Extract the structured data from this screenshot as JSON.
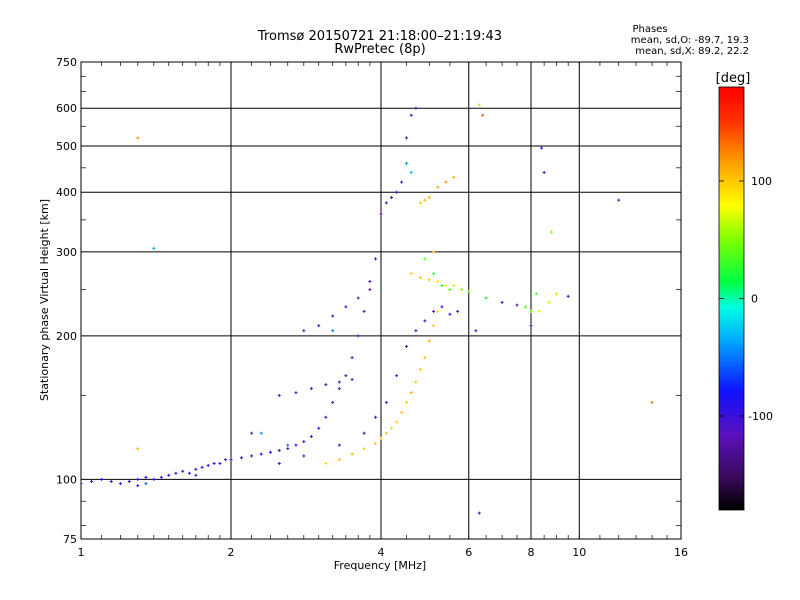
{
  "chart_data": {
    "type": "scatter",
    "title": "Tromsø 20150721 21:18:00–21:19:43",
    "subtitle": "RwPretec (8p)",
    "xlabel": "Frequency [MHz]",
    "ylabel": "Stationary phase Virtual Height [km]",
    "x_scale": "log2",
    "y_scale": "log",
    "xlim": [
      1,
      16
    ],
    "ylim": [
      75,
      750
    ],
    "x_ticks": [
      1,
      2,
      4,
      6,
      8,
      10,
      16
    ],
    "y_ticks": [
      75,
      100,
      200,
      300,
      400,
      500,
      600,
      750
    ],
    "grid": true,
    "phase_info": {
      "title": "Phases",
      "o_line": "mean, sd,O: -89.7, 19.3",
      "x_line": "mean, sd,X:  89.2, 22.2"
    },
    "colorbar": {
      "label": "[deg]",
      "min": -180,
      "max": 180,
      "ticks": [
        100,
        0,
        -100
      ]
    },
    "series": [
      {
        "description_color": "blue O-mode trace",
        "points": [
          [
            1.0,
            98,
            -90
          ],
          [
            1.05,
            99,
            -85
          ],
          [
            1.1,
            100,
            -80
          ],
          [
            1.15,
            99,
            -88
          ],
          [
            1.2,
            98,
            -95
          ],
          [
            1.25,
            99,
            -92
          ],
          [
            1.3,
            100,
            -90
          ],
          [
            1.35,
            101,
            -87
          ],
          [
            1.4,
            100,
            -93
          ],
          [
            1.45,
            101,
            -98
          ],
          [
            1.5,
            102,
            -90
          ],
          [
            1.55,
            103,
            -85
          ],
          [
            1.6,
            104,
            -95
          ],
          [
            1.65,
            103,
            -100
          ],
          [
            1.7,
            105,
            -92
          ],
          [
            1.75,
            106,
            -88
          ],
          [
            1.8,
            107,
            -95
          ],
          [
            1.85,
            108,
            -90
          ],
          [
            1.9,
            108,
            -100
          ],
          [
            1.95,
            110,
            -97
          ],
          [
            2.0,
            110,
            -92
          ],
          [
            2.1,
            111,
            -90
          ],
          [
            2.2,
            112,
            -95
          ],
          [
            2.3,
            113,
            -88
          ],
          [
            2.4,
            114,
            -93
          ],
          [
            2.5,
            115,
            -97
          ],
          [
            2.6,
            116,
            -90
          ],
          [
            2.7,
            118,
            -95
          ],
          [
            2.8,
            120,
            -92
          ],
          [
            2.9,
            123,
            -100
          ],
          [
            3.0,
            128,
            -102
          ],
          [
            3.1,
            135,
            -105
          ],
          [
            3.2,
            145,
            -110
          ],
          [
            3.3,
            155,
            -108
          ],
          [
            3.4,
            165,
            -112
          ],
          [
            3.5,
            180,
            -110
          ],
          [
            3.6,
            200,
            -115
          ],
          [
            3.7,
            225,
            -112
          ],
          [
            3.8,
            250,
            -118
          ],
          [
            3.9,
            290,
            -120
          ],
          [
            4.0,
            360,
            -115
          ],
          [
            4.1,
            380,
            -110
          ],
          [
            4.2,
            390,
            -112
          ],
          [
            4.3,
            400,
            -108
          ],
          [
            4.4,
            420,
            -105
          ],
          [
            4.5,
            520,
            -110
          ],
          [
            4.6,
            580,
            -108
          ],
          [
            4.7,
            600,
            -112
          ],
          [
            2.5,
            150,
            -110
          ],
          [
            2.7,
            152,
            -115
          ],
          [
            2.9,
            155,
            -112
          ],
          [
            3.1,
            158,
            -118
          ],
          [
            3.3,
            160,
            -110
          ],
          [
            3.5,
            162,
            -115
          ],
          [
            3.2,
            220,
            -105
          ],
          [
            3.4,
            230,
            -110
          ],
          [
            3.6,
            240,
            -112
          ],
          [
            3.8,
            260,
            -115
          ],
          [
            3.0,
            210,
            -108
          ],
          [
            2.8,
            205,
            -110
          ],
          [
            1.3,
            97,
            -85
          ],
          [
            1.7,
            102,
            -120
          ],
          [
            2.2,
            125,
            -118
          ],
          [
            2.5,
            108,
            -95
          ],
          [
            2.8,
            112,
            -100
          ],
          [
            3.3,
            118,
            -110
          ],
          [
            3.7,
            125,
            -105
          ],
          [
            3.9,
            135,
            -110
          ],
          [
            4.1,
            145,
            -108
          ],
          [
            4.3,
            165,
            -112
          ],
          [
            4.5,
            190,
            -110
          ],
          [
            4.7,
            205,
            -105
          ],
          [
            4.9,
            215,
            -108
          ],
          [
            5.1,
            225,
            -110
          ],
          [
            5.3,
            230,
            -106
          ],
          [
            5.5,
            222,
            -104
          ],
          [
            5.7,
            225,
            -112
          ],
          [
            6.2,
            205,
            -100
          ],
          [
            6.5,
            240,
            -108
          ],
          [
            7.0,
            235,
            -110
          ],
          [
            7.5,
            232,
            -104
          ],
          [
            8.0,
            210,
            -100
          ],
          [
            9.5,
            242,
            -108
          ],
          [
            12.0,
            385,
            -110
          ],
          [
            8.4,
            495,
            -112
          ],
          [
            8.5,
            440,
            -108
          ],
          [
            6.3,
            85,
            -105
          ]
        ]
      },
      {
        "description_color": "yellow-orange X-mode trace",
        "points": [
          [
            3.1,
            108,
            95
          ],
          [
            3.3,
            110,
            100
          ],
          [
            3.5,
            113,
            105
          ],
          [
            3.7,
            116,
            98
          ],
          [
            3.9,
            119,
            102
          ],
          [
            4.0,
            122,
            96
          ],
          [
            4.1,
            125,
            100
          ],
          [
            4.2,
            128,
            92
          ],
          [
            4.3,
            132,
            98
          ],
          [
            4.4,
            138,
            105
          ],
          [
            4.5,
            145,
            100
          ],
          [
            4.6,
            152,
            110
          ],
          [
            4.7,
            160,
            102
          ],
          [
            4.8,
            170,
            98
          ],
          [
            4.9,
            180,
            105
          ],
          [
            5.0,
            195,
            110
          ],
          [
            5.1,
            210,
            95
          ],
          [
            5.2,
            225,
            90
          ],
          [
            5.4,
            255,
            80
          ],
          [
            5.6,
            255,
            70
          ],
          [
            5.8,
            250,
            55
          ],
          [
            6.0,
            248,
            45
          ],
          [
            4.6,
            270,
            98
          ],
          [
            4.8,
            265,
            100
          ],
          [
            5.0,
            262,
            105
          ],
          [
            5.2,
            260,
            92
          ],
          [
            4.8,
            380,
            100
          ],
          [
            4.9,
            385,
            110
          ],
          [
            5.0,
            390,
            105
          ],
          [
            5.2,
            410,
            115
          ],
          [
            5.4,
            420,
            120
          ],
          [
            5.6,
            430,
            112
          ],
          [
            5.1,
            300,
            100
          ],
          [
            1.3,
            520,
            120
          ],
          [
            1.3,
            116,
            105
          ],
          [
            14.0,
            145,
            130
          ],
          [
            6.3,
            610,
            60
          ],
          [
            6.4,
            580,
            140
          ],
          [
            8.8,
            330,
            50
          ],
          [
            8.3,
            225,
            70
          ],
          [
            8.7,
            235,
            65
          ],
          [
            9.0,
            245,
            60
          ]
        ]
      },
      {
        "description_color": "green-cyan scattered points",
        "points": [
          [
            4.9,
            290,
            35
          ],
          [
            5.1,
            270,
            20
          ],
          [
            5.3,
            255,
            15
          ],
          [
            5.5,
            250,
            30
          ],
          [
            6.5,
            240,
            25
          ],
          [
            7.8,
            230,
            40
          ],
          [
            8.0,
            225,
            45
          ],
          [
            8.2,
            245,
            30
          ],
          [
            4.6,
            440,
            -30
          ],
          [
            4.5,
            460,
            -40
          ],
          [
            3.2,
            205,
            -50
          ],
          [
            2.3,
            125,
            -45
          ],
          [
            2.6,
            118,
            -55
          ],
          [
            1.35,
            98,
            -60
          ],
          [
            1.4,
            305,
            -35
          ]
        ]
      }
    ]
  }
}
